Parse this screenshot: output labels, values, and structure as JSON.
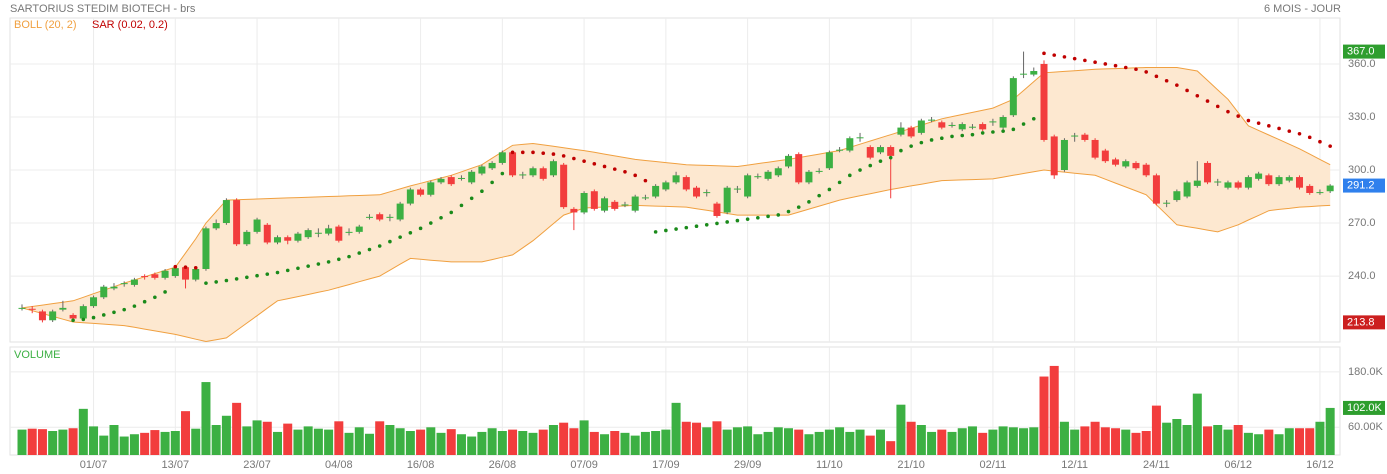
{
  "chart_data": [
    {
      "type": "candlestick",
      "title": "SARTORIUS STEDIM BIOTECH - brs",
      "subtitle": "6 MOIS - JOUR",
      "categories": [
        null,
        null,
        null,
        null,
        null,
        null,
        null,
        "01/07",
        null,
        null,
        null,
        null,
        null,
        null,
        null,
        "13/07",
        null,
        null,
        null,
        null,
        null,
        null,
        null,
        "23/07",
        null,
        null,
        null,
        null,
        null,
        null,
        null,
        "04/08",
        null,
        null,
        null,
        null,
        null,
        null,
        null,
        "16/08",
        null,
        null,
        null,
        null,
        null,
        null,
        null,
        "26/08",
        null,
        null,
        null,
        null,
        null,
        null,
        null,
        "07/09",
        null,
        null,
        null,
        null,
        null,
        null,
        null,
        "17/09",
        null,
        null,
        null,
        null,
        null,
        null,
        null,
        "29/09",
        null,
        null,
        null,
        null,
        null,
        null,
        null,
        "11/10",
        null,
        null,
        null,
        null,
        null,
        null,
        null,
        "21/10",
        null,
        null,
        null,
        null,
        null,
        null,
        null,
        "02/11",
        null,
        null,
        null,
        null,
        null,
        null,
        null,
        "12/11",
        null,
        null,
        null,
        null,
        null,
        null,
        null,
        "24/11",
        null,
        null,
        null,
        null,
        null,
        null,
        null,
        "06/12",
        null,
        null,
        null,
        null,
        null,
        null,
        null,
        "16/12",
        null
      ],
      "open": [
        222,
        221.5,
        220,
        215,
        221,
        218,
        216,
        223,
        228,
        233,
        235.5,
        235,
        240,
        241,
        239,
        240,
        245,
        238,
        244,
        267,
        270,
        283,
        258,
        265,
        269,
        259,
        262,
        260,
        262,
        264,
        264,
        268,
        264.5,
        265,
        273,
        275,
        273,
        272,
        281,
        289,
        286,
        293,
        296,
        295,
        293,
        298,
        301,
        304,
        310,
        297,
        297,
        301,
        297,
        303,
        278,
        276,
        288,
        277,
        282,
        280,
        277,
        284,
        285,
        289,
        293,
        296,
        290,
        287,
        281,
        276,
        289,
        285,
        296,
        295,
        297,
        302,
        309,
        293,
        299,
        301,
        311,
        311,
        318,
        313,
        310,
        313,
        320,
        324,
        321,
        328,
        327,
        325,
        323,
        324,
        326,
        327,
        324,
        331,
        354,
        354,
        360,
        319,
        300,
        319,
        320,
        317,
        311,
        306,
        302,
        304,
        303,
        297,
        281,
        283,
        285,
        291,
        304,
        293,
        290,
        293,
        290,
        295,
        297,
        292,
        294,
        296,
        291,
        287,
        288
      ],
      "high": [
        224,
        223,
        221,
        221,
        226,
        219,
        224,
        229,
        235,
        236,
        237,
        239,
        241,
        242,
        244,
        246,
        246,
        245,
        268,
        272,
        284,
        284,
        266,
        273,
        270,
        263,
        263,
        265,
        267,
        267,
        269,
        269,
        267,
        269,
        275,
        276,
        275,
        282,
        290,
        290,
        294,
        296,
        297,
        297,
        300,
        303,
        305,
        311,
        311,
        299,
        302,
        302,
        306,
        304,
        279,
        288,
        289,
        285,
        283,
        282,
        286,
        286,
        292,
        294,
        299,
        297,
        291,
        289,
        282,
        291,
        291,
        298,
        298,
        300,
        302,
        309,
        310,
        300,
        301,
        311,
        313,
        319,
        321,
        314,
        314,
        314,
        327,
        325,
        329,
        330,
        328,
        327,
        327,
        326,
        327,
        329,
        331,
        353,
        367,
        358,
        362,
        320,
        318,
        321,
        321,
        318,
        312,
        307,
        306,
        305,
        304,
        298,
        283,
        289,
        294,
        305,
        305,
        295,
        294,
        294,
        297,
        299,
        298,
        297,
        297,
        297,
        292,
        289,
        292
      ],
      "low": [
        220.5,
        219,
        213.8,
        214,
        220,
        214,
        215,
        222,
        227,
        232,
        234,
        234,
        238,
        238,
        238,
        239,
        233,
        237,
        243,
        266,
        269,
        257,
        257,
        264,
        258,
        258,
        258,
        259,
        261,
        262,
        263,
        259,
        263,
        264,
        272,
        271,
        271,
        271,
        280,
        285,
        285,
        292,
        291,
        294,
        292,
        297,
        300,
        303,
        296,
        295,
        296,
        294,
        296,
        278,
        266,
        275,
        277,
        276,
        277,
        279,
        276,
        283,
        284,
        288,
        292,
        288,
        284,
        285,
        273,
        275,
        287,
        284,
        295,
        294,
        296,
        301,
        292,
        292,
        298,
        300,
        310,
        310,
        316,
        306,
        309,
        284,
        319,
        318,
        320,
        327,
        323,
        324,
        322,
        323,
        322,
        325,
        323,
        330,
        352,
        353,
        316,
        295,
        299,
        316,
        316,
        306,
        304,
        302,
        301,
        300,
        296,
        280,
        279,
        282,
        284,
        290,
        292,
        291,
        289,
        289,
        289,
        294,
        291,
        291,
        293,
        289,
        286,
        286,
        287
      ],
      "close": [
        222,
        221,
        215,
        220,
        222,
        216,
        223,
        228,
        234,
        234,
        236,
        238,
        239.5,
        239,
        243,
        244.5,
        238,
        244,
        267,
        270,
        283,
        258,
        265,
        272,
        259,
        262,
        260,
        264,
        266,
        264.5,
        267,
        260,
        265,
        268,
        273.5,
        272,
        273.5,
        281,
        289,
        286,
        293,
        295,
        292,
        295.5,
        299,
        302,
        304,
        310,
        297,
        297.5,
        301,
        295,
        305,
        279,
        276,
        287,
        278,
        284,
        278,
        280.5,
        285,
        284.5,
        291,
        293,
        297,
        289,
        285,
        287.5,
        274,
        290,
        289.5,
        297,
        296.5,
        299,
        301,
        308,
        293,
        299,
        299.5,
        310,
        311.5,
        318,
        318.5,
        307,
        313,
        308,
        324,
        319,
        328,
        328.5,
        324,
        325.5,
        326,
        324.5,
        323,
        327.5,
        330,
        352,
        354.5,
        356,
        317,
        297,
        317,
        319.5,
        317,
        307,
        305,
        303,
        305,
        301,
        297,
        281,
        281.5,
        288,
        293,
        294,
        293,
        293.5,
        293,
        290,
        296,
        298,
        292,
        296,
        296,
        290,
        287,
        287.5,
        291.2
      ],
      "up_color": "#3cb043",
      "down_color": "#f23d3d",
      "ylim": [
        202.7,
        386.0
      ],
      "yticks": [
        {
          "value": 240,
          "label": "240.0"
        },
        {
          "value": 270,
          "label": "270.0"
        },
        {
          "value": 300,
          "label": "300.0"
        },
        {
          "value": 330,
          "label": "330.0"
        },
        {
          "value": 360,
          "label": "360.0"
        }
      ],
      "grid": true,
      "bollinger": {
        "name": "BOLL (20, 2)",
        "color": "#f0a040",
        "fill": "#fde8d0",
        "upper": [
          222,
          222.8,
          223.6,
          224.4,
          225.2,
          226,
          228,
          230,
          232,
          234,
          236,
          237.8,
          239.6,
          241.4,
          243.2,
          245,
          253,
          261,
          270,
          276.5,
          283,
          283.2,
          283.4,
          283.6,
          283.8,
          284,
          284.2,
          284.4,
          284.6,
          284.8,
          285,
          285.2,
          285.4,
          285.6,
          285.8,
          286,
          287.7,
          289.3,
          291,
          292.5,
          294,
          295.5,
          297,
          299,
          301,
          303,
          306.7,
          310.3,
          314,
          314.5,
          315,
          314.2,
          313.4,
          312.6,
          311.8,
          311,
          310,
          309,
          308,
          307,
          306,
          305.4,
          304.8,
          304.2,
          303.6,
          303,
          302.8,
          302.6,
          302.4,
          302.2,
          302,
          302.8,
          303.6,
          304.4,
          305.2,
          306,
          307,
          308,
          309,
          310,
          311,
          312.8,
          314.6,
          316.4,
          318.2,
          320,
          321.8,
          323.6,
          325.4,
          327.2,
          329,
          330.2,
          331.4,
          332.6,
          333.8,
          335,
          337.5,
          340,
          345,
          350,
          355,
          355.4,
          355.8,
          356.2,
          356.6,
          357,
          357.2,
          357.4,
          357.6,
          357.8,
          358,
          358,
          358,
          358,
          357,
          356,
          350.7,
          345.3,
          340,
          332.5,
          325,
          322.4,
          319.8,
          317.2,
          314.6,
          312,
          309,
          306,
          303
        ],
        "lower": [
          222,
          220.4,
          218.8,
          217.2,
          215.6,
          214,
          213.6,
          213.2,
          212.8,
          212.4,
          212,
          211,
          210,
          209,
          208,
          207,
          205.7,
          204.3,
          203,
          204,
          205,
          209.2,
          213.4,
          217.6,
          221.8,
          226,
          227.2,
          228.4,
          229.6,
          230.8,
          232,
          233.6,
          235.2,
          236.8,
          238.4,
          240,
          243.3,
          246.7,
          250,
          249.5,
          249,
          248.5,
          248,
          248,
          248,
          248,
          249.3,
          250.7,
          252,
          256,
          260,
          264.8,
          269.7,
          274.5,
          276.5,
          278.5,
          278.8,
          279.1,
          279.4,
          279.7,
          280,
          279.8,
          279.6,
          279.4,
          279.2,
          279,
          278.1,
          277.2,
          276.3,
          275.4,
          274.5,
          274.5,
          274.5,
          274.5,
          274.5,
          274.5,
          276.2,
          277.9,
          279.6,
          281.3,
          283,
          284.2,
          285.4,
          286.6,
          287.8,
          289,
          290,
          291,
          292,
          293,
          294,
          294.2,
          294.4,
          294.6,
          294.8,
          295,
          296,
          297,
          298,
          299,
          300,
          299.4,
          298.8,
          298.2,
          297.6,
          297,
          294.8,
          292.6,
          290.4,
          288.2,
          286,
          280.3,
          274.7,
          269,
          268,
          267,
          266,
          265,
          267,
          269,
          271.7,
          274.3,
          277,
          277.7,
          278.3,
          279,
          279.3,
          279.7,
          280
        ]
      },
      "sar": {
        "name": "SAR (0.02, 0.2)",
        "color": "#c00000",
        "below_color": "#1a8a1a",
        "values": [
          null,
          null,
          null,
          null,
          null,
          215,
          215.5,
          216.5,
          218,
          219.5,
          221,
          223,
          225.5,
          228,
          231,
          245.3,
          245,
          244.7,
          236,
          236.7,
          237.5,
          238.4,
          239.3,
          240.2,
          241.1,
          242,
          243.2,
          244.4,
          245.6,
          246.8,
          248,
          249.5,
          251,
          253,
          255,
          257,
          259.5,
          262,
          264.5,
          267,
          270,
          273,
          276,
          280,
          284,
          288,
          293,
          298,
          310,
          310,
          310,
          309.5,
          309,
          308,
          306.5,
          305,
          303.5,
          302,
          300.5,
          299,
          297,
          294,
          265,
          265.8,
          266.6,
          267.4,
          268.2,
          269,
          269.8,
          270.6,
          271.4,
          272.2,
          273,
          273.8,
          274.6,
          276.5,
          279,
          282,
          285.5,
          289,
          293,
          297,
          300,
          302.5,
          305,
          307,
          311,
          313.5,
          315.5,
          317,
          318,
          319,
          319.5,
          320,
          321,
          321.5,
          322,
          323,
          326,
          329,
          366,
          365,
          364,
          363,
          362,
          361,
          360,
          359,
          358,
          357,
          355.5,
          353,
          350.5,
          348,
          345,
          342,
          339,
          336,
          333,
          330.5,
          328,
          326.5,
          325,
          323.5,
          322,
          320.5,
          318.5,
          316,
          313.5
        ]
      },
      "markers": [
        {
          "value": 367.0,
          "label": "367.0",
          "color": "#2e9e2e"
        },
        {
          "value": 291.2,
          "label": "291.2",
          "color": "#2f80ed"
        },
        {
          "value": 213.8,
          "label": "213.8",
          "color": "#cc1f1f"
        }
      ]
    },
    {
      "type": "bar",
      "title": "VOLUME",
      "title_color": "#3cb043",
      "values": [
        55000,
        57000,
        56000,
        52000,
        55000,
        58000,
        100000,
        62000,
        42000,
        65000,
        40000,
        45000,
        48000,
        54000,
        50000,
        52000,
        95000,
        57000,
        158000,
        65000,
        85000,
        113000,
        62000,
        75000,
        72000,
        50000,
        68000,
        55000,
        62000,
        57000,
        55000,
        73000,
        48000,
        60000,
        46000,
        73000,
        65000,
        58000,
        52000,
        55000,
        60000,
        48000,
        56000,
        45000,
        40000,
        50000,
        58000,
        52000,
        55000,
        52000,
        48000,
        55000,
        65000,
        70000,
        58000,
        75000,
        50000,
        45000,
        52000,
        48000,
        42000,
        50000,
        52000,
        55000,
        113000,
        72000,
        70000,
        60000,
        73000,
        55000,
        60000,
        62000,
        45000,
        50000,
        60000,
        58000,
        55000,
        45000,
        50000,
        55000,
        60000,
        50000,
        55000,
        42000,
        55000,
        30000,
        109000,
        72000,
        65000,
        50000,
        55000,
        50000,
        58000,
        62000,
        48000,
        55000,
        62000,
        60000,
        58000,
        60000,
        170000,
        193000,
        72000,
        55000,
        62000,
        72000,
        60000,
        58000,
        55000,
        48000,
        52000,
        107000,
        70000,
        78000,
        65000,
        133000,
        62000,
        65000,
        55000,
        65000,
        48000,
        45000,
        55000,
        45000,
        58000,
        58000,
        58000,
        72000,
        102000
      ],
      "ylim": [
        0,
        234000
      ],
      "yticks": [
        {
          "value": 60000,
          "label": "60.00K"
        },
        {
          "value": 180000,
          "label": "180.0K"
        }
      ],
      "grid": true,
      "marker": {
        "value": 102000,
        "label": "102.0K",
        "color": "#2e9e2e"
      }
    }
  ]
}
